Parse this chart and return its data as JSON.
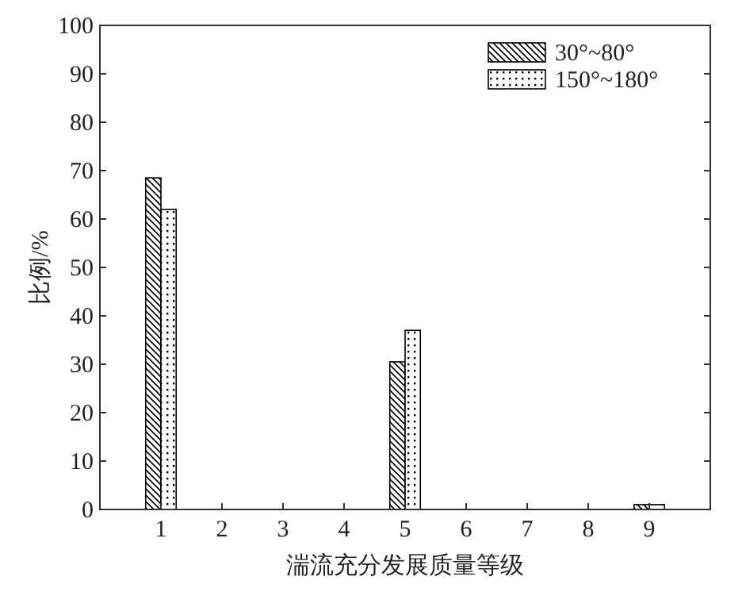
{
  "chart_data": {
    "type": "bar",
    "xlabel": "湍流充分发展质量等级",
    "ylabel": "比例/%",
    "x": [
      1,
      5,
      9
    ],
    "series": [
      {
        "name": "30°~80°",
        "color": "#000000",
        "values": [
          68.5,
          30.5,
          1
        ]
      },
      {
        "name": "150°~180°",
        "color": "#000000",
        "values": [
          62,
          37,
          1
        ]
      }
    ],
    "xlim": [
      0,
      10
    ],
    "xticks": [
      1,
      2,
      3,
      4,
      5,
      6,
      7,
      8,
      9
    ],
    "ylim": [
      0,
      100
    ],
    "yticks": [
      0,
      10,
      20,
      30,
      40,
      50,
      60,
      70,
      80,
      90,
      100
    ],
    "grid": false,
    "legend": "top right"
  }
}
